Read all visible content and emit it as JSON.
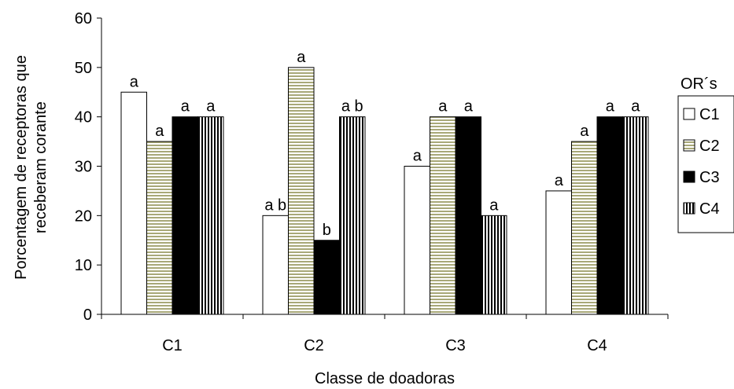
{
  "chart_data": {
    "type": "bar",
    "title": "",
    "xlabel": "Classe de doadoras",
    "ylabel_lines": [
      "Porcentagem de receptoras que",
      "receberam corante"
    ],
    "ylim": [
      0,
      60
    ],
    "yticks": [
      "0",
      "10",
      "20",
      "30",
      "40",
      "50",
      "60"
    ],
    "categories": [
      "C1",
      "C2",
      "C3",
      "C4"
    ],
    "legend_title": "OR´s",
    "legend_position": "right",
    "series": [
      {
        "name": "C1",
        "pattern": "white",
        "values": [
          45,
          20,
          30,
          25
        ],
        "labels": [
          "a",
          "a b",
          "a",
          "a"
        ]
      },
      {
        "name": "C2",
        "pattern": "horizontal-stripes",
        "values": [
          35,
          50,
          40,
          35
        ],
        "labels": [
          "a",
          "a",
          "a",
          "a"
        ]
      },
      {
        "name": "C3",
        "pattern": "black",
        "values": [
          40,
          15,
          40,
          40
        ],
        "labels": [
          "a",
          "b",
          "a",
          "a"
        ]
      },
      {
        "name": "C4",
        "pattern": "vertical-stripes",
        "values": [
          40,
          40,
          20,
          40
        ],
        "labels": [
          "a",
          "a b",
          "a",
          "a"
        ]
      }
    ],
    "colors": {
      "stripe_fill": "#a8a878",
      "black": "#000000",
      "white": "#ffffff"
    }
  }
}
